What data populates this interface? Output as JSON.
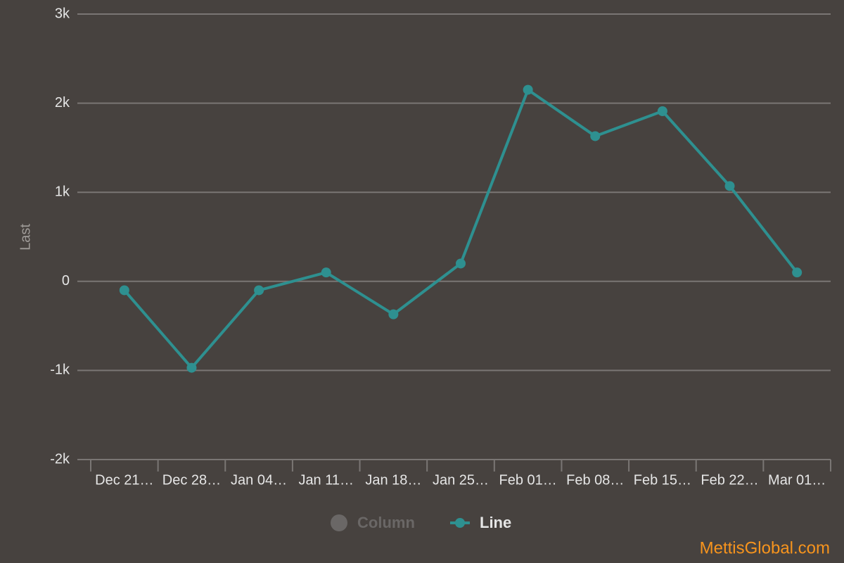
{
  "chart_data": {
    "type": "line",
    "y_label": "Last",
    "categories": [
      "Dec 21…",
      "Dec 28…",
      "Jan 04…",
      "Jan 11…",
      "Jan 18…",
      "Jan 25…",
      "Feb 01…",
      "Feb 08…",
      "Feb 15…",
      "Feb 22…",
      "Mar 01…"
    ],
    "series": [
      {
        "name": "Line",
        "color": "#2e9090",
        "values": [
          -100,
          -970,
          -100,
          100,
          -370,
          200,
          2150,
          1630,
          1910,
          1070,
          100
        ]
      }
    ],
    "hidden_series": [
      {
        "name": "Column",
        "color": "#6a6766"
      }
    ],
    "ylim": [
      -2000,
      3000
    ],
    "yticks": [
      {
        "value": -2000,
        "label": "-2k"
      },
      {
        "value": -1000,
        "label": "-1k"
      },
      0,
      {
        "value": 1000,
        "label": "1k"
      },
      {
        "value": 2000,
        "label": "2k"
      },
      {
        "value": 3000,
        "label": "3k"
      }
    ],
    "grid": true,
    "credit": "MettisGlobal.com"
  }
}
